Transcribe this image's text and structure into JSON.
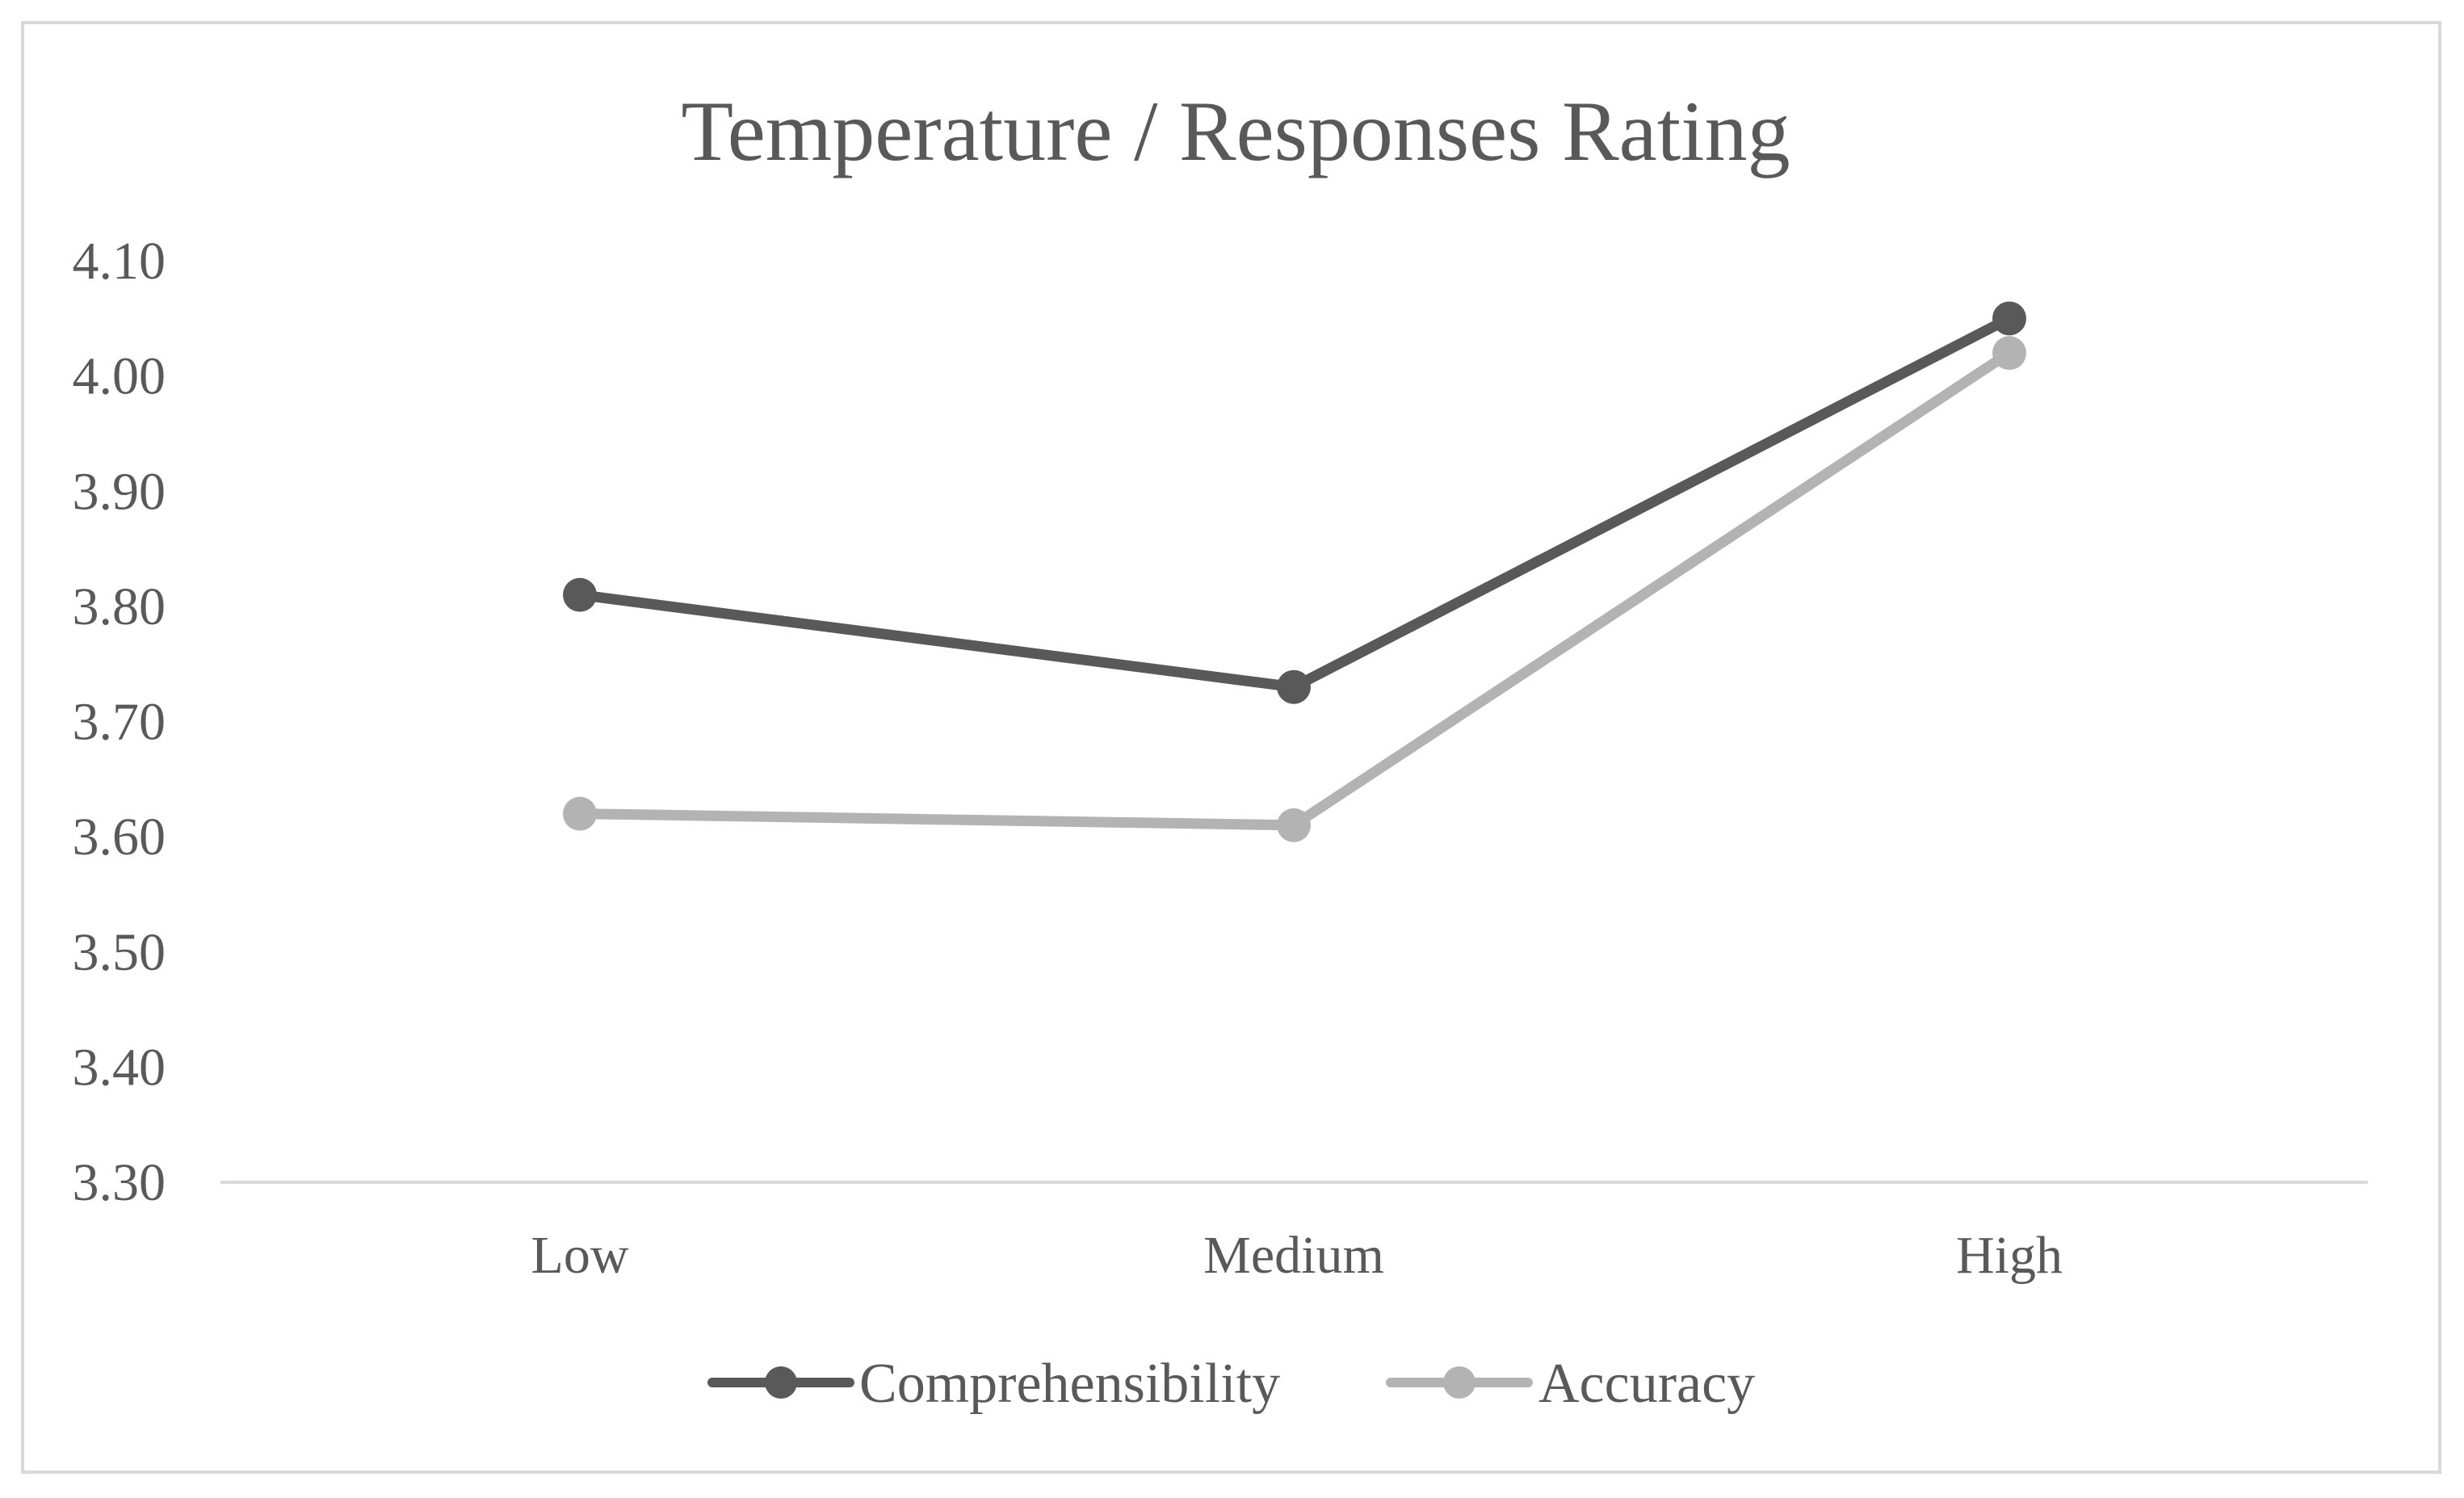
{
  "chart_data": {
    "type": "line",
    "title": "Temperature / Responses Rating",
    "xlabel": "",
    "ylabel": "",
    "categories": [
      "Low",
      "Medium",
      "High"
    ],
    "ylim": [
      3.3,
      4.1
    ],
    "yticks": [
      "4.10",
      "4.00",
      "3.90",
      "3.80",
      "3.70",
      "3.60",
      "3.50",
      "3.40",
      "3.30"
    ],
    "ytick_values": [
      4.1,
      4.0,
      3.9,
      3.8,
      3.7,
      3.6,
      3.5,
      3.4,
      3.3
    ],
    "grid": false,
    "legend_position": "bottom",
    "series": [
      {
        "name": "Comprehensibility",
        "color": "#595959",
        "values": [
          3.81,
          3.73,
          4.05
        ]
      },
      {
        "name": "Accuracy",
        "color": "#b3b3b3",
        "values": [
          3.62,
          3.61,
          4.02
        ]
      }
    ]
  }
}
